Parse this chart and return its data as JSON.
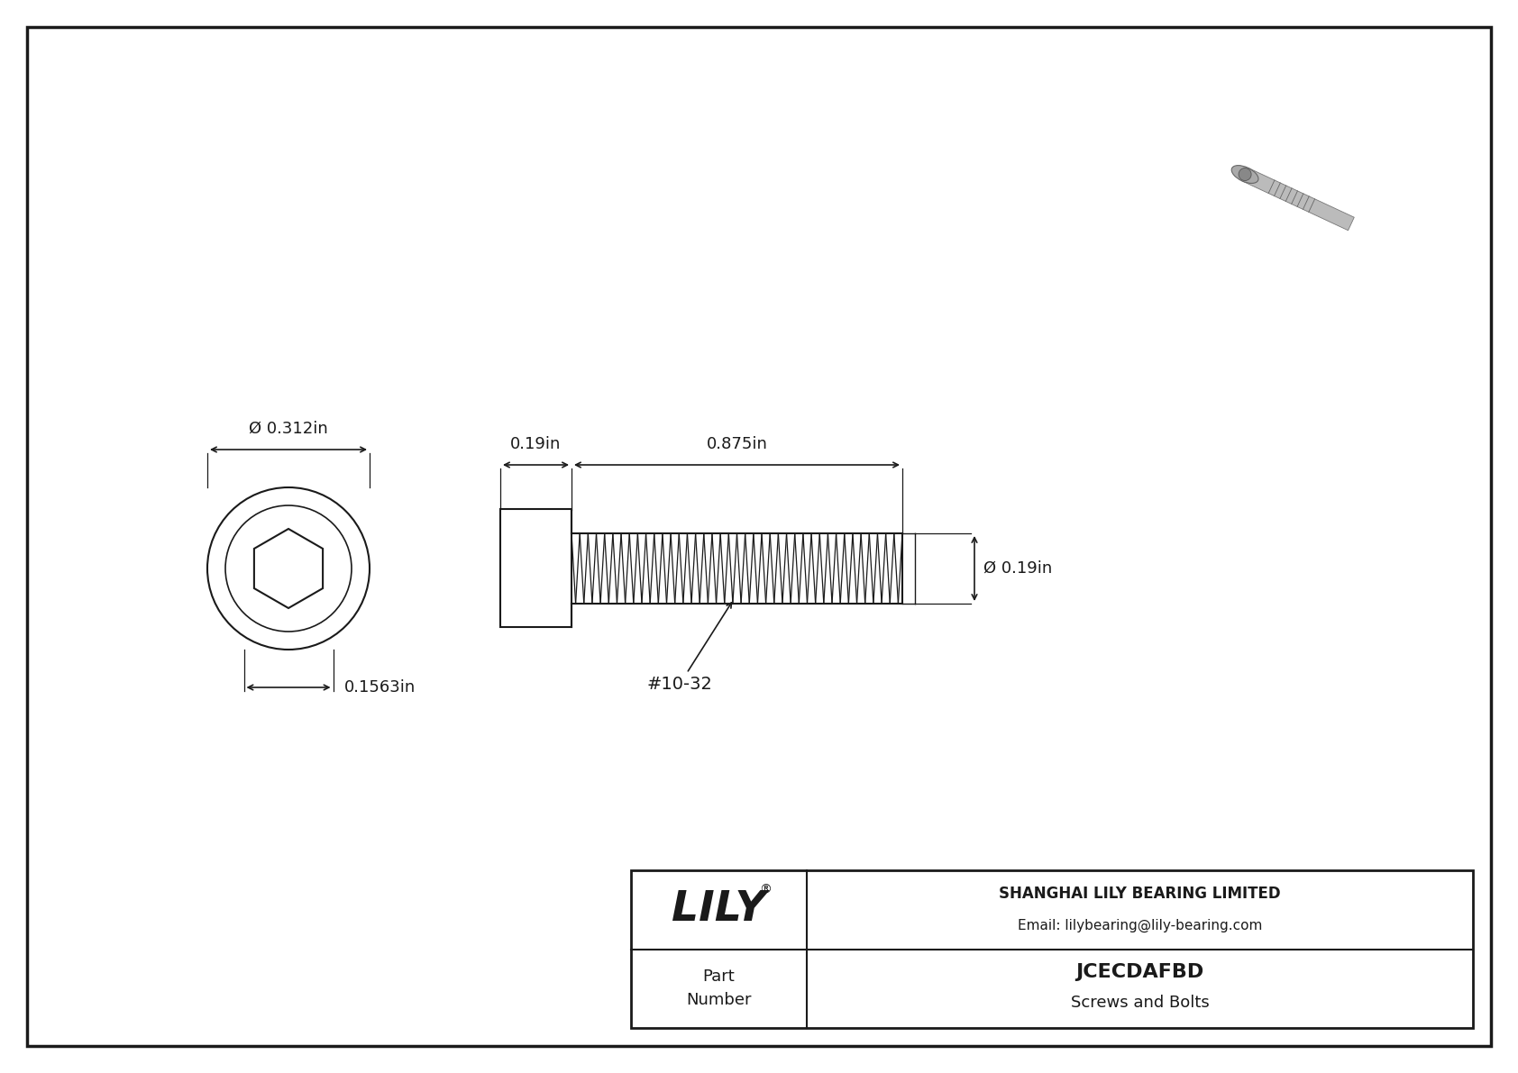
{
  "bg_color": "#ffffff",
  "line_color": "#1a1a1a",
  "title": "JCECDAFBD",
  "subtitle": "Screws and Bolts",
  "company": "SHANGHAI LILY BEARING LIMITED",
  "email": "Email: lilybearing@lily-bearing.com",
  "part_label": "Part\nNumber",
  "dim_head_diameter": "Ø 0.312in",
  "dim_head_height": "0.1563in",
  "dim_body_length_label": "0.19in",
  "dim_shaft_length_label": "0.875in",
  "dim_shaft_diameter_label": "Ø 0.19in",
  "dim_thread_label": "#10-32",
  "fig_w": 16.84,
  "fig_h": 11.91,
  "dpi": 100
}
